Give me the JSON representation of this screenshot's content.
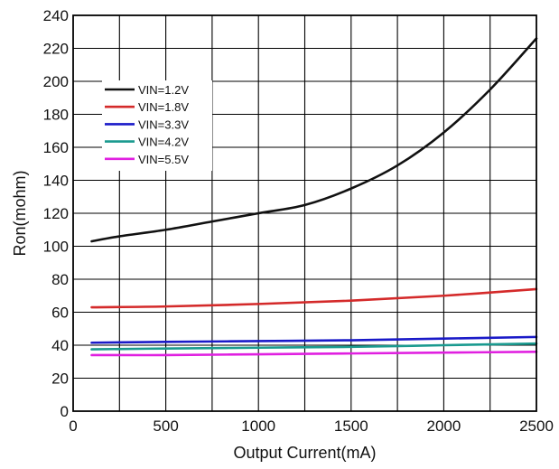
{
  "chart_data": {
    "type": "line",
    "title": "",
    "xlabel": "Output Current(mA)",
    "ylabel": "Ron(mohm)",
    "xlim": [
      0,
      2500
    ],
    "ylim": [
      0,
      240
    ],
    "x_ticks": [
      0,
      500,
      1000,
      1500,
      2000,
      2500
    ],
    "y_ticks": [
      0,
      20,
      40,
      60,
      80,
      100,
      120,
      140,
      160,
      180,
      200,
      220,
      240
    ],
    "x_grid_step": 250,
    "grid": true,
    "legend_position": "top-left",
    "series": [
      {
        "name": "VIN=1.2V",
        "color": "#111111",
        "x": [
          100,
          250,
          500,
          750,
          1000,
          1250,
          1500,
          1750,
          2000,
          2250,
          2500
        ],
        "y": [
          103,
          106,
          110,
          115,
          120,
          125,
          135,
          149,
          169,
          195,
          226
        ]
      },
      {
        "name": "VIN=1.8V",
        "color": "#d42a2a",
        "x": [
          100,
          500,
          1000,
          1500,
          2000,
          2500
        ],
        "y": [
          63,
          63.5,
          65,
          67,
          70,
          74
        ]
      },
      {
        "name": "VIN=3.3V",
        "color": "#1a1ac8",
        "x": [
          100,
          500,
          1000,
          1500,
          2000,
          2500
        ],
        "y": [
          41.5,
          42,
          42.5,
          43,
          44,
          45
        ]
      },
      {
        "name": "VIN=4.2V",
        "color": "#1a9a8f",
        "x": [
          100,
          500,
          1000,
          1500,
          2000,
          2500
        ],
        "y": [
          37.5,
          38,
          38.5,
          39,
          40,
          41
        ]
      },
      {
        "name": "VIN=5.5V",
        "color": "#e020e0",
        "x": [
          100,
          500,
          1000,
          1500,
          2000,
          2500
        ],
        "y": [
          34,
          34,
          34.5,
          35,
          35.5,
          36
        ]
      }
    ]
  }
}
